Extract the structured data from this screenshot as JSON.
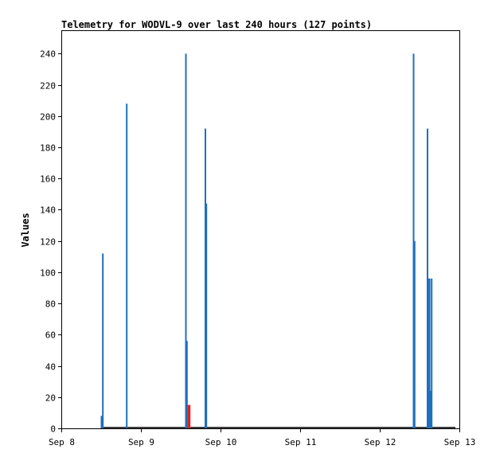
{
  "chart_data": {
    "type": "bar",
    "title": "Telemetry for WODVL-9 over last 240 hours (127 points)",
    "xlabel": "",
    "ylabel": "Values",
    "ylim": [
      0,
      255
    ],
    "xlim": [
      0,
      5
    ],
    "x_ticks": [
      {
        "v": 0,
        "label": "Sep 8"
      },
      {
        "v": 1,
        "label": "Sep 9"
      },
      {
        "v": 2,
        "label": "Sep 10"
      },
      {
        "v": 3,
        "label": "Sep 11"
      },
      {
        "v": 4,
        "label": "Sep 12"
      },
      {
        "v": 5,
        "label": "Sep 13"
      }
    ],
    "y_ticks": [
      0,
      20,
      40,
      60,
      80,
      100,
      120,
      140,
      160,
      180,
      200,
      220,
      240
    ],
    "grid": false,
    "baseline": {
      "from": 0.52,
      "to": 4.95,
      "value": 0.5
    },
    "series": [
      {
        "color": "#1f6fbf",
        "points": [
          {
            "x": 0.505,
            "y": 8
          },
          {
            "x": 0.522,
            "y": 112
          },
          {
            "x": 0.822,
            "y": 208
          },
          {
            "x": 1.565,
            "y": 240
          },
          {
            "x": 1.578,
            "y": 56
          },
          {
            "x": 1.81,
            "y": 192
          },
          {
            "x": 1.822,
            "y": 144
          },
          {
            "x": 4.425,
            "y": 240
          },
          {
            "x": 4.438,
            "y": 120
          },
          {
            "x": 4.6,
            "y": 192
          },
          {
            "x": 4.613,
            "y": 96
          },
          {
            "x": 4.626,
            "y": 96
          },
          {
            "x": 4.639,
            "y": 24
          },
          {
            "x": 4.652,
            "y": 96
          }
        ]
      },
      {
        "color": "#e0201c",
        "points": [
          {
            "x": 1.597,
            "y": 15
          },
          {
            "x": 1.612,
            "y": 15
          }
        ]
      }
    ]
  }
}
